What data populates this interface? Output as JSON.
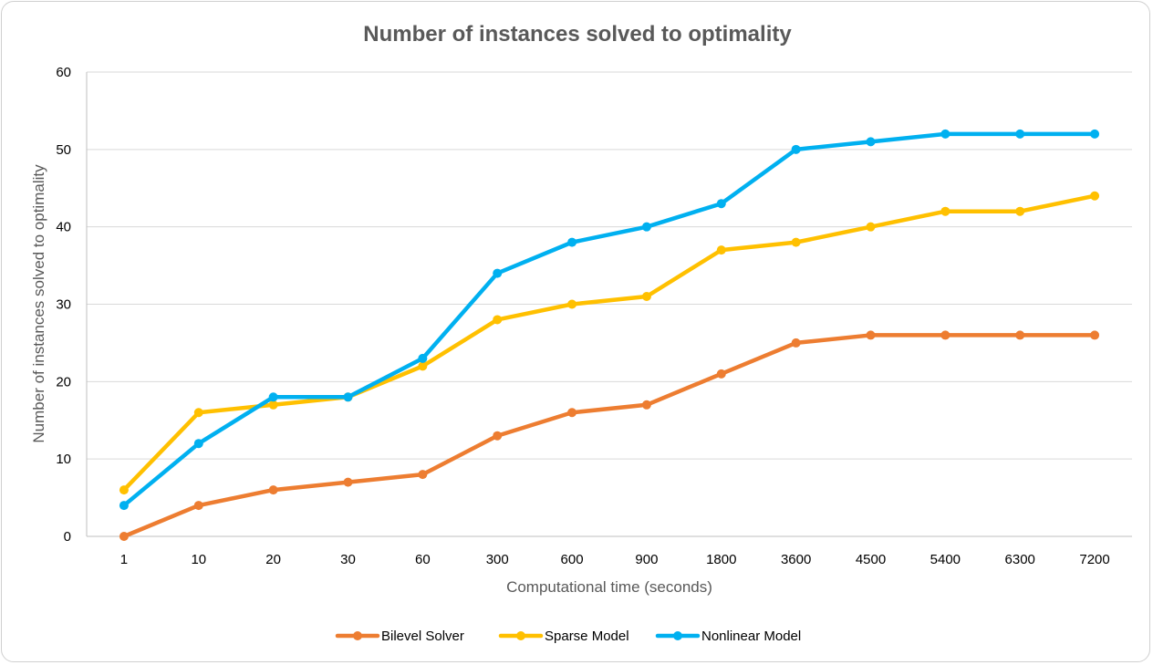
{
  "chart_data": {
    "type": "line",
    "title": "Number of instances solved to optimality",
    "xlabel": "Computational time (seconds)",
    "ylabel": "Number of instances solved to optimality",
    "categories": [
      "1",
      "10",
      "20",
      "30",
      "60",
      "300",
      "600",
      "900",
      "1800",
      "3600",
      "4500",
      "5400",
      "6300",
      "7200"
    ],
    "ylim": [
      0,
      60
    ],
    "yticks": [
      0,
      10,
      20,
      30,
      40,
      50,
      60
    ],
    "grid": true,
    "legend_position": "bottom",
    "series": [
      {
        "name": "Bilevel Solver",
        "color": "#ED7D31",
        "values": [
          0,
          4,
          6,
          7,
          8,
          13,
          16,
          17,
          21,
          25,
          26,
          26,
          26,
          26
        ]
      },
      {
        "name": "Sparse Model",
        "color": "#FFC000",
        "values": [
          6,
          16,
          17,
          18,
          22,
          28,
          30,
          31,
          37,
          38,
          40,
          42,
          42,
          44
        ]
      },
      {
        "name": "Nonlinear Model",
        "color": "#00B0F0",
        "values": [
          4,
          12,
          18,
          18,
          23,
          34,
          38,
          40,
          43,
          50,
          51,
          52,
          52,
          52
        ]
      }
    ]
  }
}
